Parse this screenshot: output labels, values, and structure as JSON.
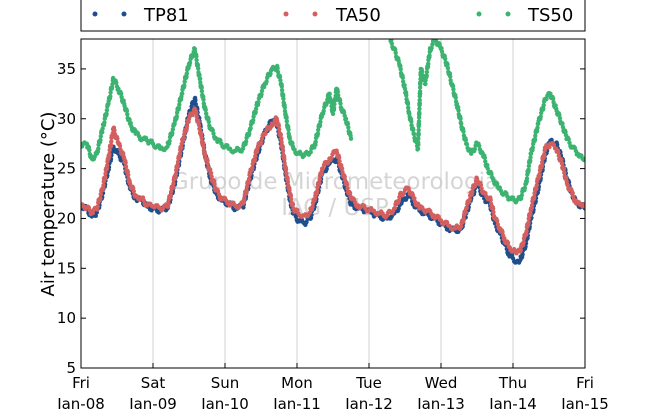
{
  "chart_data": {
    "type": "scatter",
    "ylabel": "Air temperature (°C)",
    "ylim": [
      5,
      38
    ],
    "yticks": [
      5,
      10,
      15,
      20,
      25,
      30,
      35
    ],
    "x_range_days": [
      0,
      7
    ],
    "xticks": [
      {
        "day": 0,
        "weekday": "Fri",
        "date": "Jan-08"
      },
      {
        "day": 1,
        "weekday": "Sat",
        "date": "Jan-09"
      },
      {
        "day": 2,
        "weekday": "Sun",
        "date": "Jan-10"
      },
      {
        "day": 3,
        "weekday": "Mon",
        "date": "Jan-11"
      },
      {
        "day": 4,
        "weekday": "Tue",
        "date": "Jan-12"
      },
      {
        "day": 5,
        "weekday": "Wed",
        "date": "Jan-13"
      },
      {
        "day": 6,
        "weekday": "Thu",
        "date": "Jan-14"
      },
      {
        "day": 7,
        "weekday": "Fri",
        "date": "Jan-15"
      }
    ],
    "grid": "vertical",
    "legend_position": "top",
    "watermark": [
      "Grupo de Micrometeorologia",
      "IAG / USP"
    ],
    "series": [
      {
        "name": "TP81",
        "color": "#1f4e8c",
        "points": [
          [
            0.0,
            21.3
          ],
          [
            0.08,
            21.0
          ],
          [
            0.15,
            20.2
          ],
          [
            0.22,
            20.6
          ],
          [
            0.3,
            22.5
          ],
          [
            0.38,
            25.0
          ],
          [
            0.45,
            27.2
          ],
          [
            0.52,
            26.5
          ],
          [
            0.6,
            25.5
          ],
          [
            0.68,
            23.0
          ],
          [
            0.76,
            22.0
          ],
          [
            0.85,
            21.8
          ],
          [
            0.92,
            21.2
          ],
          [
            1.0,
            21.0
          ],
          [
            1.1,
            20.8
          ],
          [
            1.2,
            21.0
          ],
          [
            1.3,
            23.5
          ],
          [
            1.4,
            27.0
          ],
          [
            1.5,
            30.5
          ],
          [
            1.58,
            32.0
          ],
          [
            1.65,
            29.5
          ],
          [
            1.72,
            26.5
          ],
          [
            1.8,
            24.0
          ],
          [
            1.88,
            22.5
          ],
          [
            1.95,
            21.8
          ],
          [
            2.05,
            21.5
          ],
          [
            2.15,
            21.0
          ],
          [
            2.25,
            21.2
          ],
          [
            2.35,
            24.0
          ],
          [
            2.45,
            26.5
          ],
          [
            2.55,
            28.5
          ],
          [
            2.65,
            29.8
          ],
          [
            2.72,
            29.5
          ],
          [
            2.78,
            27.5
          ],
          [
            2.84,
            24.5
          ],
          [
            2.9,
            22.0
          ],
          [
            2.95,
            20.5
          ],
          [
            3.02,
            19.8
          ],
          [
            3.1,
            19.5
          ],
          [
            3.18,
            20.0
          ],
          [
            3.25,
            21.5
          ],
          [
            3.35,
            24.5
          ],
          [
            3.45,
            25.5
          ],
          [
            3.55,
            26.0
          ],
          [
            3.62,
            24.5
          ],
          [
            3.68,
            23.0
          ],
          [
            3.75,
            21.5
          ],
          [
            3.85,
            21.0
          ],
          [
            3.95,
            20.8
          ],
          [
            4.05,
            20.5
          ],
          [
            4.15,
            20.2
          ],
          [
            4.25,
            20.0
          ],
          [
            4.35,
            20.5
          ],
          [
            4.45,
            21.5
          ],
          [
            4.55,
            22.5
          ],
          [
            4.62,
            21.5
          ],
          [
            4.7,
            20.8
          ],
          [
            4.8,
            20.5
          ],
          [
            4.9,
            20.0
          ],
          [
            5.0,
            19.5
          ],
          [
            5.1,
            19.0
          ],
          [
            5.2,
            18.8
          ],
          [
            5.28,
            19.0
          ],
          [
            5.35,
            20.5
          ],
          [
            5.42,
            22.0
          ],
          [
            5.5,
            23.5
          ],
          [
            5.6,
            22.0
          ],
          [
            5.68,
            21.5
          ],
          [
            5.75,
            19.5
          ],
          [
            5.82,
            18.5
          ],
          [
            5.88,
            17.5
          ],
          [
            5.94,
            16.5
          ],
          [
            6.0,
            16.0
          ],
          [
            6.05,
            15.7
          ],
          [
            6.1,
            15.8
          ],
          [
            6.18,
            17.5
          ],
          [
            6.25,
            20.0
          ],
          [
            6.35,
            23.0
          ],
          [
            6.45,
            26.5
          ],
          [
            6.52,
            27.8
          ],
          [
            6.6,
            27.5
          ],
          [
            6.68,
            26.0
          ],
          [
            6.75,
            24.0
          ],
          [
            6.82,
            22.5
          ],
          [
            6.88,
            21.5
          ],
          [
            6.95,
            21.3
          ],
          [
            7.0,
            21.0
          ]
        ]
      },
      {
        "name": "TA50",
        "color": "#d35f5f",
        "points": [
          [
            0.0,
            21.2
          ],
          [
            0.08,
            21.1
          ],
          [
            0.15,
            20.5
          ],
          [
            0.22,
            21.0
          ],
          [
            0.3,
            23.0
          ],
          [
            0.38,
            26.0
          ],
          [
            0.45,
            29.0
          ],
          [
            0.52,
            27.5
          ],
          [
            0.6,
            26.0
          ],
          [
            0.68,
            23.5
          ],
          [
            0.76,
            22.3
          ],
          [
            0.85,
            22.0
          ],
          [
            0.92,
            21.3
          ],
          [
            1.0,
            21.2
          ],
          [
            1.1,
            21.0
          ],
          [
            1.2,
            21.2
          ],
          [
            1.3,
            24.0
          ],
          [
            1.4,
            27.5
          ],
          [
            1.5,
            30.0
          ],
          [
            1.58,
            31.0
          ],
          [
            1.65,
            29.0
          ],
          [
            1.72,
            26.5
          ],
          [
            1.8,
            24.5
          ],
          [
            1.88,
            22.8
          ],
          [
            1.95,
            22.0
          ],
          [
            2.05,
            21.6
          ],
          [
            2.15,
            21.2
          ],
          [
            2.25,
            21.5
          ],
          [
            2.35,
            24.5
          ],
          [
            2.45,
            27.0
          ],
          [
            2.55,
            28.5
          ],
          [
            2.65,
            29.5
          ],
          [
            2.72,
            30.0
          ],
          [
            2.78,
            28.0
          ],
          [
            2.84,
            25.0
          ],
          [
            2.9,
            22.5
          ],
          [
            2.95,
            21.0
          ],
          [
            3.02,
            20.5
          ],
          [
            3.1,
            20.3
          ],
          [
            3.18,
            20.6
          ],
          [
            3.25,
            22.0
          ],
          [
            3.35,
            25.0
          ],
          [
            3.45,
            26.0
          ],
          [
            3.55,
            26.8
          ],
          [
            3.62,
            25.0
          ],
          [
            3.68,
            23.5
          ],
          [
            3.75,
            22.0
          ],
          [
            3.85,
            21.3
          ],
          [
            3.95,
            21.0
          ],
          [
            4.05,
            20.8
          ],
          [
            4.15,
            20.5
          ],
          [
            4.25,
            20.3
          ],
          [
            4.35,
            21.0
          ],
          [
            4.45,
            22.5
          ],
          [
            4.55,
            23.0
          ],
          [
            4.62,
            22.0
          ],
          [
            4.7,
            21.0
          ],
          [
            4.8,
            20.8
          ],
          [
            4.9,
            20.3
          ],
          [
            5.0,
            19.8
          ],
          [
            5.1,
            19.3
          ],
          [
            5.2,
            19.0
          ],
          [
            5.28,
            19.2
          ],
          [
            5.35,
            21.0
          ],
          [
            5.42,
            22.5
          ],
          [
            5.5,
            24.0
          ],
          [
            5.6,
            22.5
          ],
          [
            5.68,
            22.0
          ],
          [
            5.75,
            20.0
          ],
          [
            5.82,
            19.0
          ],
          [
            5.88,
            18.0
          ],
          [
            5.94,
            17.2
          ],
          [
            6.0,
            16.8
          ],
          [
            6.05,
            16.5
          ],
          [
            6.1,
            16.7
          ],
          [
            6.18,
            18.5
          ],
          [
            6.25,
            21.0
          ],
          [
            6.35,
            24.0
          ],
          [
            6.45,
            27.0
          ],
          [
            6.52,
            27.5
          ],
          [
            6.6,
            27.0
          ],
          [
            6.68,
            25.5
          ],
          [
            6.75,
            23.5
          ],
          [
            6.82,
            22.5
          ],
          [
            6.88,
            21.5
          ],
          [
            6.95,
            21.3
          ],
          [
            7.0,
            21.2
          ]
        ]
      },
      {
        "name": "TS50",
        "color": "#3cb371",
        "points": [
          [
            0.0,
            27.2
          ],
          [
            0.08,
            27.5
          ],
          [
            0.15,
            26.0
          ],
          [
            0.22,
            26.5
          ],
          [
            0.3,
            29.0
          ],
          [
            0.38,
            31.5
          ],
          [
            0.45,
            34.0
          ],
          [
            0.52,
            33.0
          ],
          [
            0.6,
            31.5
          ],
          [
            0.68,
            29.5
          ],
          [
            0.76,
            28.5
          ],
          [
            0.85,
            28.0
          ],
          [
            0.92,
            27.8
          ],
          [
            1.0,
            27.5
          ],
          [
            1.1,
            27.0
          ],
          [
            1.2,
            27.2
          ],
          [
            1.3,
            29.5
          ],
          [
            1.4,
            32.5
          ],
          [
            1.5,
            35.5
          ],
          [
            1.58,
            37.0
          ],
          [
            1.65,
            34.0
          ],
          [
            1.72,
            31.0
          ],
          [
            1.8,
            29.0
          ],
          [
            1.88,
            28.0
          ],
          [
            1.95,
            27.5
          ],
          [
            2.05,
            27.0
          ],
          [
            2.15,
            26.8
          ],
          [
            2.25,
            27.0
          ],
          [
            2.35,
            29.0
          ],
          [
            2.45,
            31.5
          ],
          [
            2.55,
            33.5
          ],
          [
            2.65,
            35.0
          ],
          [
            2.72,
            35.2
          ],
          [
            2.78,
            33.5
          ],
          [
            2.84,
            30.5
          ],
          [
            2.9,
            28.0
          ],
          [
            2.95,
            27.0
          ],
          [
            3.02,
            26.5
          ],
          [
            3.1,
            26.3
          ],
          [
            3.18,
            26.6
          ],
          [
            3.25,
            27.5
          ],
          [
            3.35,
            30.5
          ],
          [
            3.45,
            32.5
          ],
          [
            3.5,
            30.5
          ],
          [
            3.55,
            33.0
          ],
          [
            3.62,
            31.0
          ],
          [
            3.68,
            30.0
          ],
          [
            3.75,
            28.0
          ],
          [
            4.3,
            37.8
          ],
          [
            4.35,
            37.0
          ],
          [
            4.42,
            35.5
          ],
          [
            4.5,
            33.0
          ],
          [
            4.56,
            30.5
          ],
          [
            4.62,
            28.5
          ],
          [
            4.68,
            27.0
          ],
          [
            4.72,
            35.0
          ],
          [
            4.78,
            33.5
          ],
          [
            4.85,
            37.0
          ],
          [
            4.92,
            38.0
          ],
          [
            5.0,
            37.0
          ],
          [
            5.08,
            35.5
          ],
          [
            5.15,
            33.5
          ],
          [
            5.22,
            31.5
          ],
          [
            5.28,
            29.5
          ],
          [
            5.35,
            27.5
          ],
          [
            5.42,
            26.5
          ],
          [
            5.5,
            27.5
          ],
          [
            5.58,
            26.5
          ],
          [
            5.65,
            25.0
          ],
          [
            5.72,
            24.0
          ],
          [
            5.8,
            23.0
          ],
          [
            5.88,
            22.5
          ],
          [
            5.95,
            22.0
          ],
          [
            6.02,
            21.8
          ],
          [
            6.1,
            22.0
          ],
          [
            6.18,
            23.5
          ],
          [
            6.25,
            26.5
          ],
          [
            6.35,
            29.5
          ],
          [
            6.45,
            32.0
          ],
          [
            6.52,
            32.5
          ],
          [
            6.6,
            31.0
          ],
          [
            6.68,
            29.5
          ],
          [
            6.75,
            28.0
          ],
          [
            6.82,
            27.2
          ],
          [
            6.9,
            26.5
          ],
          [
            6.95,
            26.3
          ],
          [
            7.0,
            26.0
          ]
        ]
      }
    ]
  }
}
